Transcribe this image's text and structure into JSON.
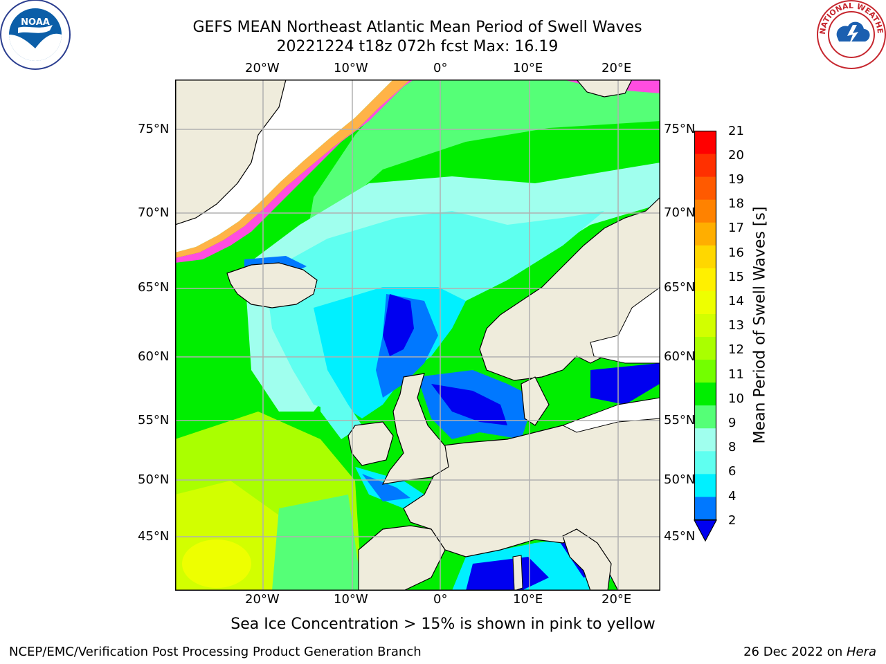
{
  "header": {
    "title": "GEFS MEAN Northeast Atlantic Mean Period of Swell Waves",
    "subtitle": "20221224 t18z 072h fcst   Max: 16.19"
  },
  "logos": {
    "noara": "NOAA",
    "nws": "NATIONAL WEATHER SERVICE"
  },
  "map": {
    "lon_labels": [
      "20°W",
      "10°W",
      "0°",
      "10°E",
      "20°E"
    ],
    "lat_labels": [
      "75°N",
      "70°N",
      "65°N",
      "60°N",
      "55°N",
      "50°N",
      "45°N"
    ],
    "colors": {
      "land": "#efecdc",
      "ocean_base": "#73ff73",
      "grid": "#b0b0b0"
    }
  },
  "colorbar": {
    "title": "Mean Period of Swell Waves [s]",
    "labels": [
      "21",
      "20",
      "19",
      "18",
      "17",
      "16",
      "15",
      "14",
      "13",
      "12",
      "11",
      "10",
      "9",
      "8",
      "6",
      "4",
      "2"
    ],
    "colors": [
      "#ff0000",
      "#ff3000",
      "#ff5a00",
      "#ff8200",
      "#ffae00",
      "#ffd700",
      "#fff000",
      "#eeff00",
      "#d2ff00",
      "#aaff00",
      "#73ff00",
      "#00ee00",
      "#55ff77",
      "#a0ffee",
      "#5ffff0",
      "#00f0ff",
      "#0078ff",
      "#0000f0"
    ]
  },
  "caption": "Sea Ice Concentration > 15% is shown in pink to yellow",
  "footer": {
    "left": "NCEP/EMC/Verification Post Processing Product Generation Branch",
    "right_prefix": "26 Dec 2022 on ",
    "right_host": "Hera"
  }
}
